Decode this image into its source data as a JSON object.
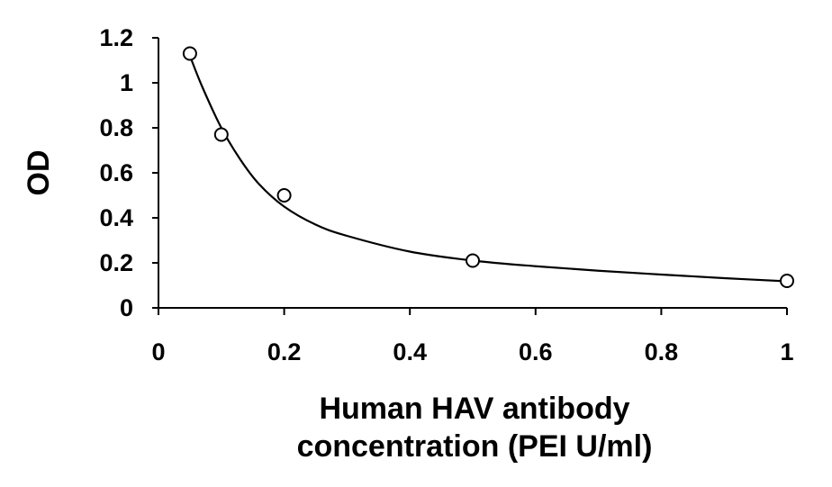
{
  "chart_data": {
    "type": "scatter",
    "title": "",
    "xlabel_lines": [
      "Human HAV antibody",
      "concentration (PEI U/ml)"
    ],
    "ylabel": "OD",
    "xlim": [
      0,
      1
    ],
    "ylim": [
      0,
      1.2
    ],
    "x_ticks": [
      0,
      0.2,
      0.4,
      0.6,
      0.8,
      1
    ],
    "x_tick_labels": [
      "0",
      "0.2",
      "0.4",
      "0.6",
      "0.8",
      "1"
    ],
    "y_ticks": [
      0,
      0.2,
      0.4,
      0.6,
      0.8,
      1,
      1.2
    ],
    "y_tick_labels": [
      "0",
      "0.2",
      "0.4",
      "0.6",
      "0.8",
      "1",
      "1.2"
    ],
    "grid": false,
    "legend": "none",
    "series": [
      {
        "marker": "open-circle",
        "points": [
          {
            "x": 0.05,
            "y": 1.13
          },
          {
            "x": 0.1,
            "y": 0.77
          },
          {
            "x": 0.2,
            "y": 0.5
          },
          {
            "x": 0.5,
            "y": 0.21
          },
          {
            "x": 1.0,
            "y": 0.12
          }
        ],
        "fit_curve": [
          {
            "x": 0.05,
            "y": 1.12
          },
          {
            "x": 0.07,
            "y": 0.98
          },
          {
            "x": 0.1,
            "y": 0.8
          },
          {
            "x": 0.13,
            "y": 0.66
          },
          {
            "x": 0.16,
            "y": 0.55
          },
          {
            "x": 0.2,
            "y": 0.45
          },
          {
            "x": 0.25,
            "y": 0.37
          },
          {
            "x": 0.3,
            "y": 0.32
          },
          {
            "x": 0.4,
            "y": 0.25
          },
          {
            "x": 0.5,
            "y": 0.21
          },
          {
            "x": 0.6,
            "y": 0.185
          },
          {
            "x": 0.7,
            "y": 0.165
          },
          {
            "x": 0.8,
            "y": 0.148
          },
          {
            "x": 0.9,
            "y": 0.132
          },
          {
            "x": 1.0,
            "y": 0.118
          }
        ]
      }
    ],
    "colors": {
      "line": "#000000",
      "marker": "#000000",
      "axis": "#000000"
    }
  }
}
